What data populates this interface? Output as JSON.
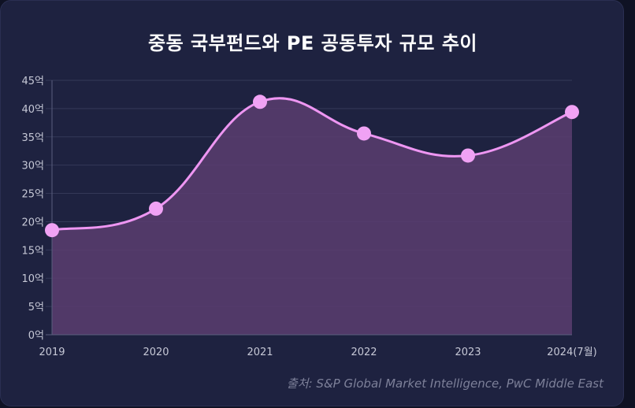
{
  "chart_data": {
    "type": "area",
    "title": "중동 국부펀드와 PE 공동투자 규모 추이",
    "categories": [
      "2019",
      "2020",
      "2021",
      "2022",
      "2023",
      "2024(7월)"
    ],
    "series": [
      {
        "name": "공동투자 규모",
        "values": [
          18.5,
          22.3,
          41.2,
          35.6,
          31.7,
          39.4
        ]
      }
    ],
    "yticks": [
      "0억",
      "5억",
      "10억",
      "15억",
      "20억",
      "25억",
      "30억",
      "35억",
      "40억",
      "45억"
    ],
    "ylim": [
      0,
      45
    ],
    "grid": true,
    "colors": {
      "line": "#ee96f2",
      "marker": "#f0a2f4",
      "fill": "#5a3d70"
    },
    "source": "출처: S&P Global Market Intelligence, PwC Middle East"
  }
}
